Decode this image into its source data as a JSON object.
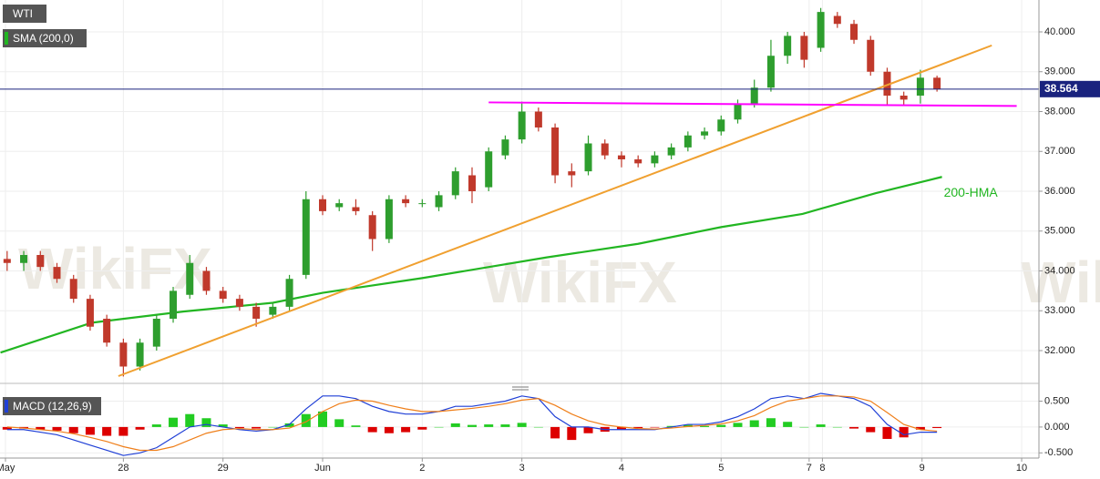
{
  "chart_data": [
    {
      "type": "candlestick",
      "title": "WTI",
      "watermark": "WikiFX",
      "x": [
        -19,
        -18,
        -17,
        -16,
        -15,
        -14,
        -13,
        -12,
        -11,
        -10,
        -9,
        -8,
        -7,
        -6,
        -5,
        -4,
        -3,
        -2,
        -1,
        0,
        1,
        2,
        3,
        4,
        5,
        6,
        7,
        8,
        9,
        10,
        11,
        12,
        13,
        14,
        15,
        16,
        17,
        18,
        19,
        20,
        21,
        22,
        23,
        24,
        25,
        26,
        27,
        28,
        29,
        30,
        31,
        32,
        33,
        34,
        35,
        36,
        37
      ],
      "open": [
        34.3,
        34.2,
        34.4,
        34.1,
        33.8,
        33.3,
        32.8,
        32.2,
        31.6,
        32.1,
        32.8,
        33.4,
        34.0,
        33.5,
        33.3,
        33.1,
        32.9,
        33.1,
        33.9,
        35.8,
        35.6,
        35.6,
        35.4,
        34.8,
        35.8,
        35.7,
        35.6,
        35.9,
        36.4,
        36.1,
        36.9,
        37.3,
        38.0,
        37.6,
        36.5,
        36.5,
        37.2,
        36.9,
        36.8,
        36.7,
        36.9,
        37.1,
        37.4,
        37.5,
        37.8,
        38.2,
        38.6,
        39.4,
        39.9,
        39.6,
        40.4,
        40.2,
        39.8,
        39.0,
        38.4,
        38.4,
        38.85
      ],
      "high": [
        34.5,
        34.5,
        34.5,
        34.2,
        33.9,
        33.4,
        32.9,
        32.3,
        32.3,
        32.9,
        33.6,
        34.4,
        34.1,
        33.6,
        33.4,
        33.2,
        33.2,
        33.9,
        36.0,
        35.9,
        35.8,
        35.8,
        35.5,
        35.9,
        35.9,
        35.8,
        36.0,
        36.6,
        36.6,
        37.1,
        37.4,
        38.25,
        38.1,
        37.7,
        36.7,
        37.4,
        37.3,
        37.0,
        36.9,
        37.0,
        37.2,
        37.5,
        37.6,
        37.9,
        38.3,
        38.8,
        39.8,
        40.0,
        40.0,
        40.6,
        40.5,
        40.3,
        39.9,
        39.1,
        38.5,
        39.05,
        38.9
      ],
      "low": [
        34.0,
        34.0,
        34.0,
        33.7,
        33.2,
        32.5,
        32.1,
        31.35,
        31.5,
        32.0,
        32.7,
        33.3,
        33.4,
        33.2,
        33.0,
        32.6,
        32.8,
        33.0,
        33.8,
        35.4,
        35.5,
        35.4,
        34.5,
        34.7,
        35.6,
        35.6,
        35.5,
        35.8,
        35.7,
        36.0,
        36.8,
        37.2,
        37.5,
        36.2,
        36.1,
        36.4,
        36.8,
        36.6,
        36.6,
        36.6,
        36.8,
        37.0,
        37.3,
        37.4,
        37.7,
        38.1,
        38.5,
        39.2,
        39.1,
        39.5,
        40.1,
        39.7,
        38.9,
        38.15,
        38.15,
        38.2,
        38.5
      ],
      "close": [
        34.2,
        34.4,
        34.1,
        33.8,
        33.3,
        32.6,
        32.2,
        31.6,
        32.2,
        32.8,
        33.5,
        34.2,
        33.5,
        33.3,
        33.1,
        32.8,
        33.1,
        33.8,
        35.8,
        35.5,
        35.7,
        35.5,
        34.8,
        35.8,
        35.7,
        35.7,
        35.9,
        36.5,
        36.0,
        37.0,
        37.3,
        38.0,
        37.6,
        36.4,
        36.4,
        37.2,
        36.9,
        36.8,
        36.7,
        36.9,
        37.1,
        37.4,
        37.5,
        37.8,
        38.2,
        38.6,
        39.4,
        39.9,
        39.3,
        40.5,
        40.2,
        39.8,
        39.0,
        38.4,
        38.3,
        38.85,
        38.564
      ],
      "up_color": "#2e9e2e",
      "down_color": "#c0392b",
      "xlim": [
        -19.43,
        43.14
      ],
      "xticks": [
        {
          "value": -19.1,
          "label": "May"
        },
        {
          "value": -12,
          "label": "28"
        },
        {
          "value": -6,
          "label": "29"
        },
        {
          "value": 0,
          "label": "Jun"
        },
        {
          "value": 6,
          "label": "2"
        },
        {
          "value": 12,
          "label": "3"
        },
        {
          "value": 18,
          "label": "4"
        },
        {
          "value": 24,
          "label": "5"
        },
        {
          "value": 29.3,
          "label": "7"
        },
        {
          "value": 30.1,
          "label": "8"
        },
        {
          "value": 36.1,
          "label": "9"
        },
        {
          "value": 42.1,
          "label": "10"
        }
      ],
      "ylim": [
        31.2,
        40.8
      ],
      "yticks": [
        {
          "value": 32,
          "label": "32.000"
        },
        {
          "value": 33,
          "label": "33.000"
        },
        {
          "value": 34,
          "label": "34.000"
        },
        {
          "value": 35,
          "label": "35.000"
        },
        {
          "value": 36,
          "label": "36.000"
        },
        {
          "value": 37,
          "label": "37.000"
        },
        {
          "value": 38,
          "label": "38.000"
        },
        {
          "value": 39,
          "label": "39.000"
        },
        {
          "value": 40,
          "label": "40.000"
        }
      ],
      "lines": [
        {
          "name": "SMA (200,0)",
          "annotation": "200-HMA",
          "color": "#22b622",
          "x": [
            -19.4,
            -13.9,
            -8.4,
            -3,
            0,
            6,
            13.5,
            19,
            24,
            28.9,
            33.3,
            37.3
          ],
          "values": [
            31.95,
            32.7,
            32.98,
            33.2,
            33.45,
            33.82,
            34.34,
            34.68,
            35.1,
            35.43,
            35.95,
            36.36
          ]
        }
      ],
      "trendlines": [
        {
          "color": "#f0a030",
          "x": [
            -12.3,
            40.3
          ],
          "values": [
            31.36,
            39.66
          ]
        },
        {
          "color": "#ff00ff",
          "x": [
            10,
            41.8
          ],
          "values": [
            38.23,
            38.14
          ]
        }
      ],
      "last_price": 38.564,
      "last_price_color": "#1a237e"
    },
    {
      "type": "macd",
      "title": "MACD (12,26,9)",
      "x": [
        -19,
        -18,
        -17,
        -16,
        -15,
        -14,
        -13,
        -12,
        -11,
        -10,
        -9,
        -8,
        -7,
        -6,
        -5,
        -4,
        -3,
        -2,
        -1,
        0,
        1,
        2,
        3,
        4,
        5,
        6,
        7,
        8,
        9,
        10,
        11,
        12,
        13,
        14,
        15,
        16,
        17,
        18,
        19,
        20,
        21,
        22,
        23,
        24,
        25,
        26,
        27,
        28,
        29,
        30,
        31,
        32,
        33,
        34,
        35,
        36,
        37
      ],
      "ylim": [
        -0.6,
        0.72
      ],
      "yticks": [
        {
          "value": -0.5,
          "label": "-0.500"
        },
        {
          "value": 0,
          "label": "0.000"
        },
        {
          "value": 0.5,
          "label": "0.500"
        }
      ],
      "series": [
        {
          "color": "#1f3fd6",
          "values": [
            -0.05,
            -0.05,
            -0.1,
            -0.15,
            -0.25,
            -0.35,
            -0.45,
            -0.55,
            -0.5,
            -0.4,
            -0.2,
            0.0,
            0.05,
            0.0,
            -0.05,
            -0.08,
            -0.05,
            0.05,
            0.35,
            0.6,
            0.6,
            0.55,
            0.4,
            0.3,
            0.25,
            0.25,
            0.3,
            0.4,
            0.4,
            0.45,
            0.5,
            0.6,
            0.55,
            0.2,
            0.0,
            0.0,
            -0.05,
            -0.05,
            -0.05,
            -0.05,
            0.0,
            0.05,
            0.05,
            0.1,
            0.2,
            0.35,
            0.55,
            0.6,
            0.55,
            0.65,
            0.6,
            0.55,
            0.4,
            0.05,
            -0.15,
            -0.1,
            -0.1
          ]
        },
        {
          "color": "#ef7f1a",
          "values": [
            0.0,
            -0.02,
            -0.05,
            -0.08,
            -0.13,
            -0.2,
            -0.28,
            -0.38,
            -0.45,
            -0.45,
            -0.38,
            -0.25,
            -0.12,
            -0.05,
            -0.03,
            -0.05,
            -0.05,
            -0.02,
            0.1,
            0.3,
            0.45,
            0.52,
            0.5,
            0.42,
            0.35,
            0.3,
            0.3,
            0.33,
            0.36,
            0.4,
            0.45,
            0.52,
            0.55,
            0.42,
            0.25,
            0.12,
            0.04,
            0.0,
            -0.03,
            -0.04,
            -0.02,
            0.01,
            0.03,
            0.06,
            0.12,
            0.22,
            0.38,
            0.5,
            0.55,
            0.6,
            0.6,
            0.58,
            0.5,
            0.28,
            0.05,
            -0.05,
            -0.08
          ]
        }
      ],
      "histogram": {
        "up_color": "#22cc22",
        "down_color": "#dd0000",
        "values": [
          -0.05,
          -0.03,
          -0.05,
          -0.07,
          -0.12,
          -0.15,
          -0.17,
          -0.17,
          -0.05,
          0.05,
          0.18,
          0.25,
          0.17,
          0.05,
          -0.02,
          -0.03,
          0.0,
          0.07,
          0.25,
          0.3,
          0.15,
          0.03,
          -0.1,
          -0.12,
          -0.1,
          -0.05,
          0.0,
          0.07,
          0.04,
          0.05,
          0.05,
          0.08,
          0.0,
          -0.22,
          -0.25,
          -0.12,
          -0.09,
          -0.05,
          -0.02,
          -0.01,
          0.02,
          0.04,
          0.02,
          0.04,
          0.08,
          0.13,
          0.17,
          0.1,
          0.0,
          0.05,
          0.0,
          -0.03,
          -0.1,
          -0.23,
          -0.2,
          -0.05,
          -0.02
        ]
      }
    }
  ]
}
